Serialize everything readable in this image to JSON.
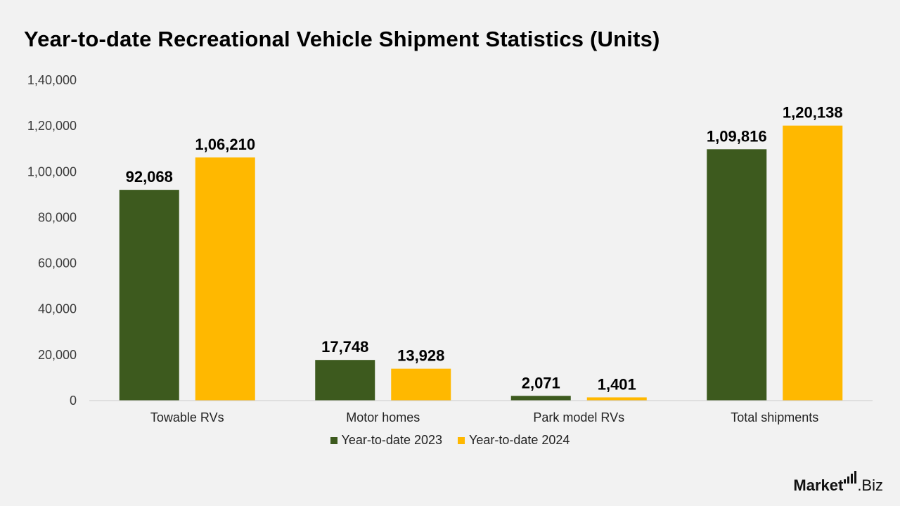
{
  "title": "Year-to-date Recreational Vehicle Shipment Statistics (Units)",
  "brand": {
    "name_bold": "Market",
    "name_rest": ".Biz",
    "icon": "bar-chart-logo-icon"
  },
  "colors": {
    "series_2023": "#3d5a1e",
    "series_2024": "#ffb800",
    "axis": "#cccccc",
    "background": "#f2f2f2"
  },
  "chart_data": {
    "type": "bar",
    "title": "Year-to-date Recreational Vehicle Shipment Statistics (Units)",
    "categories": [
      "Towable RVs",
      "Motor homes",
      "Park model RVs",
      "Total shipments"
    ],
    "series": [
      {
        "name": "Year-to-date 2023",
        "values": [
          92068,
          17748,
          2071,
          109816
        ],
        "labels": [
          "92,068",
          "17,748",
          "2,071",
          "1,09,816"
        ]
      },
      {
        "name": "Year-to-date 2024",
        "values": [
          106210,
          13928,
          1401,
          120138
        ],
        "labels": [
          "1,06,210",
          "13,928",
          "1,401",
          "1,20,138"
        ]
      }
    ],
    "ylim": [
      0,
      140000
    ],
    "yticks": [
      0,
      20000,
      40000,
      60000,
      80000,
      100000,
      120000,
      140000
    ],
    "ytick_labels": [
      "0",
      "20,000",
      "40,000",
      "60,000",
      "80,000",
      "1,00,000",
      "1,20,000",
      "1,40,000"
    ],
    "grid": false,
    "legend_position": "bottom"
  }
}
